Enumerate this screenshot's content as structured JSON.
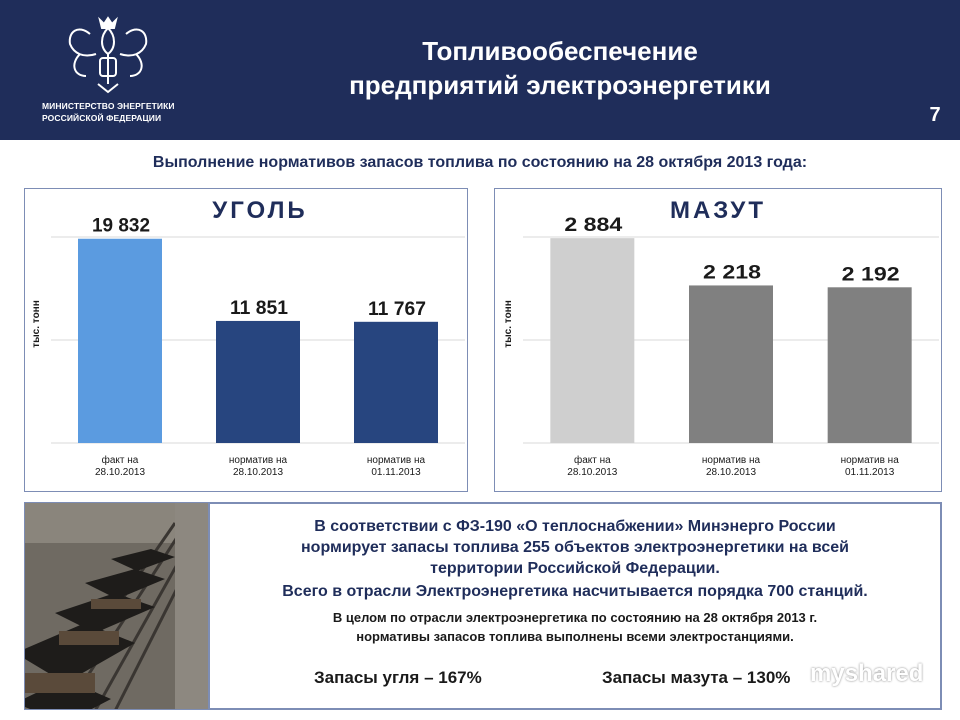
{
  "header": {
    "ministry_line1": "МИНИСТЕРСТВО ЭНЕРГЕТИКИ",
    "ministry_line2": "РОССИЙСКОЙ ФЕДЕРАЦИИ",
    "title_line1": "Топливообеспечение",
    "title_line2": "предприятий электроэнергетики",
    "page_number": "7",
    "icon": "double-headed-eagle-emblem-icon",
    "color": "#1f2d5a"
  },
  "subtitle": "Выполнение нормативов запасов топлива по состоянию на 28 октября 2013 года:",
  "chart_data": [
    {
      "type": "bar",
      "title": "УГОЛЬ",
      "ylabel": "тыс. тонн",
      "categories": [
        "факт на 28.10.2013",
        "норматив на 28.10.2013",
        "норматив на 01.11.2013"
      ],
      "category_lines": [
        [
          "факт на",
          "28.10.2013"
        ],
        [
          "норматив на",
          "28.10.2013"
        ],
        [
          "норматив на",
          "01.11.2013"
        ]
      ],
      "values": [
        19832,
        11851,
        11767
      ],
      "value_labels": [
        "19 832",
        "11 851",
        "11 767"
      ],
      "colors": [
        "#5b9be0",
        "#27457f",
        "#27457f"
      ],
      "ylim": [
        0,
        20000
      ],
      "grid": true
    },
    {
      "type": "bar",
      "title": "МАЗУТ",
      "ylabel": "тыс. тонн",
      "categories": [
        "факт на 28.10.2013",
        "норматив на 28.10.2013",
        "норматив на 01.11.2013"
      ],
      "category_lines": [
        [
          "факт на",
          "28.10.2013"
        ],
        [
          "норматив на",
          "28.10.2013"
        ],
        [
          "норматив на",
          "01.11.2013"
        ]
      ],
      "values": [
        2884,
        2218,
        2192
      ],
      "value_labels": [
        "2 884",
        "2 218",
        "2 192"
      ],
      "colors": [
        "#cfcfcf",
        "#808080",
        "#808080"
      ],
      "ylim": [
        0,
        2900
      ],
      "grid": true
    }
  ],
  "info": {
    "line1": "В соответствии с  ФЗ-190 «О теплоснабжении» Минэнерго России",
    "line2": "нормирует запасы топлива 255 объектов электроэнергетики на всей",
    "line3": "территории Российской Федерации.",
    "total": "Всего в отрасли Электроэнергетика насчитывается порядка 700 станций.",
    "note_line1": "В целом по отрасли электроэнергетика по состоянию на 28 октября 2013 г.",
    "note_line2": "нормативы запасов топлива выполнены всеми электростанциями.",
    "coal_stock": "Запасы угля – 167%",
    "oil_stock": "Запасы мазута – 130%"
  },
  "watermark": "myshared",
  "photo": "coal-railcars-photo"
}
